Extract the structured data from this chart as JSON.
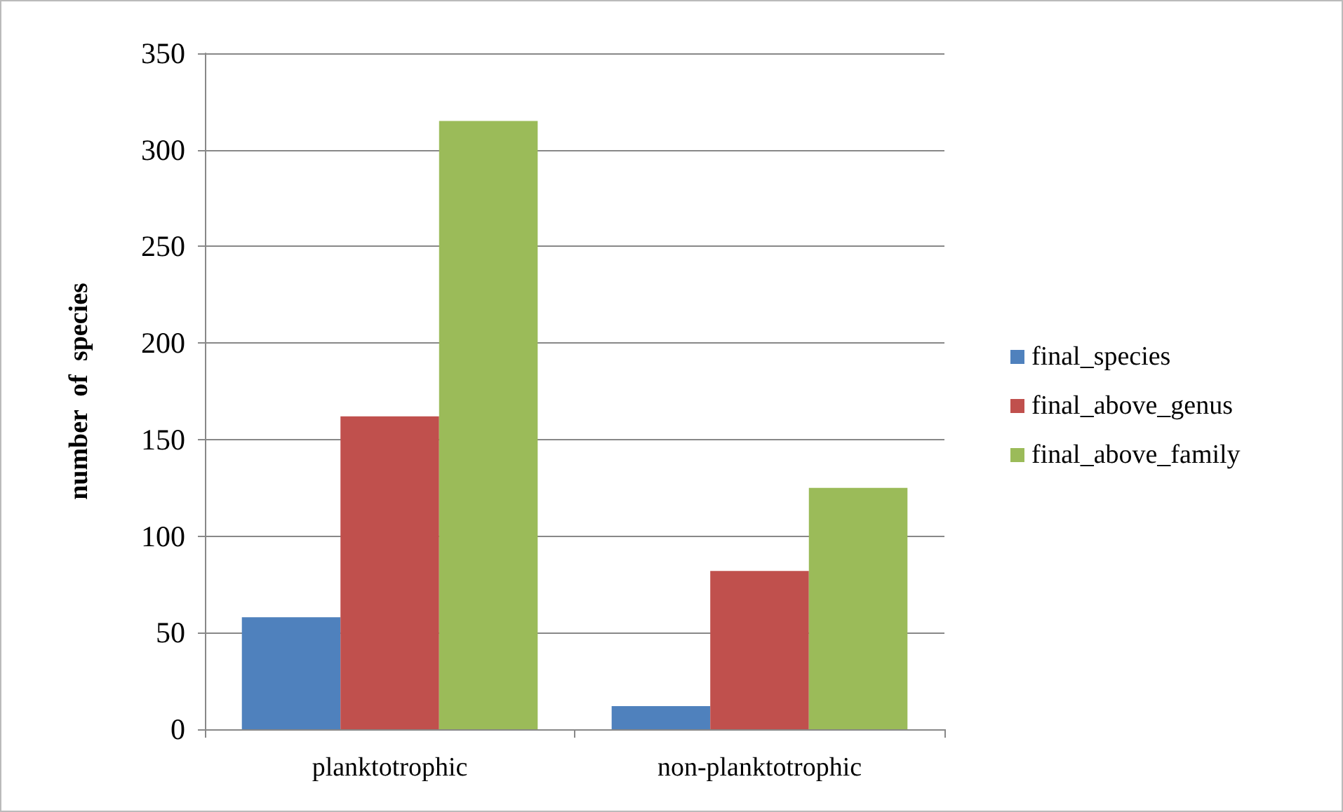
{
  "chart_data": {
    "type": "bar",
    "ylabel": "number  of  species",
    "categories": [
      "planktotrophic",
      "non-planktotrophic"
    ],
    "series": [
      {
        "name": "final_species",
        "color": "#4f81bd",
        "values": [
          58,
          12
        ]
      },
      {
        "name": "final_above_genus",
        "color": "#c0504d",
        "values": [
          162,
          82
        ]
      },
      {
        "name": "final_above_family",
        "color": "#9bbb59",
        "values": [
          315,
          125
        ]
      }
    ],
    "ylim": [
      0,
      350
    ],
    "yticks": [
      0,
      50,
      100,
      150,
      200,
      250,
      300,
      350
    ],
    "grid": "y",
    "legend": "right"
  }
}
